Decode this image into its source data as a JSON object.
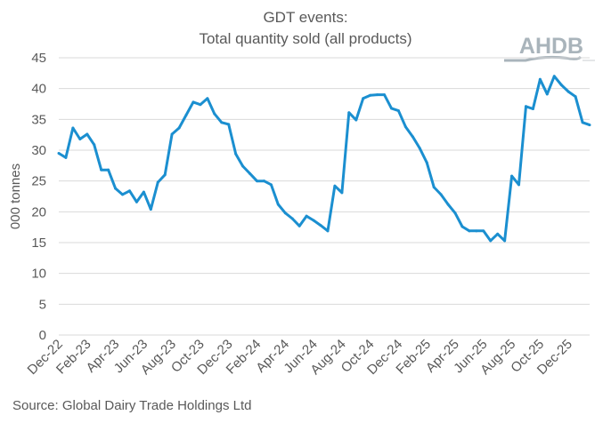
{
  "chart_data": {
    "type": "line",
    "title": "GDT events:",
    "subtitle": "Total quantity sold (all products)",
    "ylabel": "000 tonnes",
    "xlabel": "",
    "ylim": [
      0,
      45
    ],
    "yticks": [
      0,
      5,
      10,
      15,
      20,
      25,
      30,
      35,
      40,
      45
    ],
    "grid": true,
    "line_color": "#1b8fd0",
    "x_tick_labels": [
      "Dec-22",
      "Feb-23",
      "Apr-23",
      "Jun-23",
      "Aug-23",
      "Oct-23",
      "Dec-23",
      "Feb-24",
      "Apr-24",
      "Jun-24",
      "Aug-24",
      "Oct-24",
      "Dec-24",
      "Feb-25",
      "Apr-25",
      "Jun-25",
      "Aug-25",
      "Oct-25",
      "Dec-25"
    ],
    "values": [
      29.5,
      28.8,
      33.6,
      31.8,
      32.6,
      30.9,
      26.8,
      26.8,
      23.8,
      22.8,
      23.4,
      21.6,
      23.2,
      20.4,
      24.8,
      26.0,
      32.6,
      33.6,
      35.7,
      37.8,
      37.4,
      38.4,
      35.9,
      34.5,
      34.2,
      29.4,
      27.4,
      26.2,
      25.0,
      25.0,
      24.4,
      21.2,
      19.8,
      18.9,
      17.7,
      19.3,
      18.6,
      17.8,
      16.9,
      24.2,
      23.1,
      36.1,
      34.9,
      38.4,
      38.9,
      39.0,
      39.0,
      36.8,
      36.4,
      33.8,
      32.2,
      30.3,
      28.0,
      24.0,
      22.8,
      21.2,
      19.8,
      17.6,
      16.9,
      16.9,
      16.9,
      15.3,
      16.4,
      15.3,
      25.8,
      24.4,
      37.1,
      36.7,
      41.5,
      39.1,
      42.0,
      40.6,
      39.5,
      38.7,
      34.5,
      34.1
    ]
  },
  "source": "Source: Global Dairy Trade Holdings Ltd",
  "logo": {
    "text": "AHDB"
  }
}
